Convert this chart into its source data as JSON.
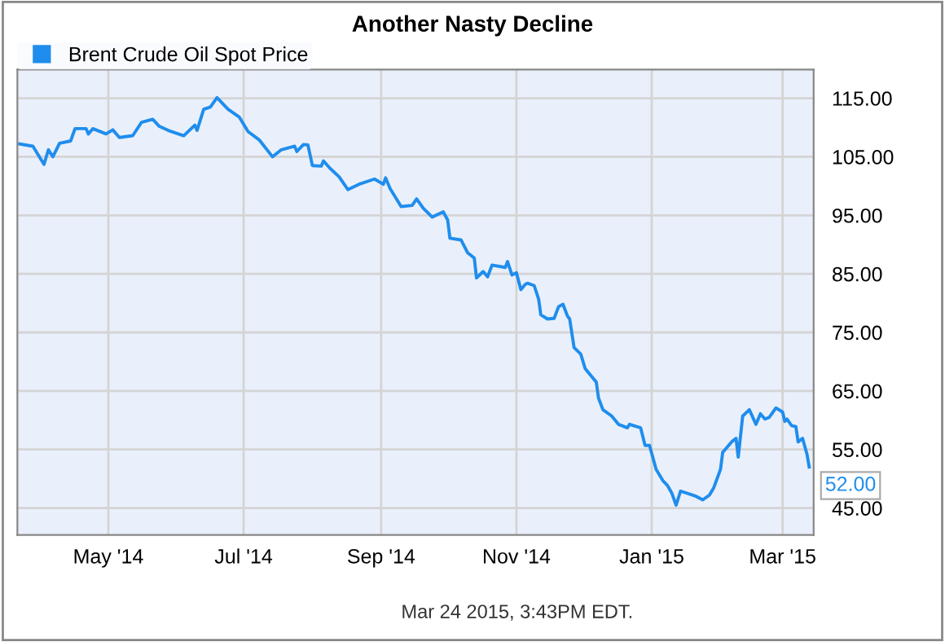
{
  "chart_data": {
    "type": "line",
    "title": "Another Nasty Decline",
    "x": [
      "2014-03-22",
      "2014-03-28",
      "2014-04-02",
      "2014-04-04",
      "2014-04-06",
      "2014-04-09",
      "2014-04-14",
      "2014-04-16",
      "2014-04-21",
      "2014-04-22",
      "2014-04-24",
      "2014-04-30",
      "2014-05-03",
      "2014-05-06",
      "2014-05-12",
      "2014-05-16",
      "2014-05-21",
      "2014-05-24",
      "2014-05-28",
      "2014-06-04",
      "2014-06-09",
      "2014-06-10",
      "2014-06-13",
      "2014-06-16",
      "2014-06-19",
      "2014-06-24",
      "2014-06-29",
      "2014-07-03",
      "2014-07-08",
      "2014-07-14",
      "2014-07-18",
      "2014-07-24",
      "2014-07-25",
      "2014-07-28",
      "2014-07-30",
      "2014-08-01",
      "2014-08-05",
      "2014-08-06",
      "2014-08-09",
      "2014-08-13",
      "2014-08-17",
      "2014-08-22",
      "2014-08-29",
      "2014-09-02",
      "2014-09-03",
      "2014-09-05",
      "2014-09-10",
      "2014-09-15",
      "2014-09-17",
      "2014-09-20",
      "2014-09-24",
      "2014-09-29",
      "2014-10-01",
      "2014-10-02",
      "2014-10-07",
      "2014-10-10",
      "2014-10-13",
      "2014-10-14",
      "2014-10-17",
      "2014-10-19",
      "2014-10-21",
      "2014-10-27",
      "2014-10-28",
      "2014-10-30",
      "2014-11-01",
      "2014-11-03",
      "2014-11-05",
      "2014-11-06",
      "2014-11-09",
      "2014-11-11",
      "2014-11-12",
      "2014-11-15",
      "2014-11-18",
      "2014-11-20",
      "2014-11-22",
      "2014-11-24",
      "2014-11-25",
      "2014-11-27",
      "2014-11-30",
      "2014-12-02",
      "2014-12-07",
      "2014-12-08",
      "2014-12-10",
      "2014-12-14",
      "2014-12-17",
      "2014-12-21",
      "2014-12-22",
      "2014-12-27",
      "2014-12-29",
      "2014-12-31",
      "2015-01-03",
      "2015-01-06",
      "2015-01-08",
      "2015-01-10",
      "2015-01-12",
      "2015-01-14",
      "2015-01-21",
      "2015-01-24",
      "2015-01-27",
      "2015-01-29",
      "2015-02-01",
      "2015-02-02",
      "2015-02-06",
      "2015-02-08",
      "2015-02-09",
      "2015-02-11",
      "2015-02-14",
      "2015-02-17",
      "2015-02-19",
      "2015-02-21",
      "2015-02-23",
      "2015-02-26",
      "2015-03-01",
      "2015-03-02",
      "2015-03-03",
      "2015-03-05",
      "2015-03-07",
      "2015-03-08",
      "2015-03-10",
      "2015-03-12",
      "2015-03-13"
    ],
    "series": [
      {
        "name": "Brent Crude Oil Spot Price",
        "color": "#1f8ded",
        "values": [
          107.2,
          106.8,
          103.7,
          106.2,
          105,
          107.3,
          107.7,
          109.8,
          109.8,
          108.9,
          109.8,
          108.9,
          109.6,
          108.3,
          108.6,
          110.9,
          111.4,
          110.2,
          109.5,
          108.6,
          110.4,
          109.5,
          113.1,
          113.5,
          115.1,
          113.1,
          111.8,
          109.3,
          107.9,
          105,
          106.2,
          106.8,
          105.9,
          107.1,
          107,
          103.5,
          103.4,
          104.3,
          103,
          101.6,
          99.4,
          100.3,
          101.2,
          100.3,
          101.4,
          99.6,
          96.5,
          96.7,
          97.8,
          96.2,
          94.7,
          95.6,
          94.2,
          91.1,
          90.8,
          88.6,
          87.7,
          84.3,
          85.4,
          84.5,
          86.5,
          86.1,
          87.1,
          84.8,
          85.2,
          82.3,
          83.2,
          83.4,
          83,
          80.7,
          78,
          77.3,
          77.4,
          79.4,
          79.8,
          77.8,
          77.3,
          72.4,
          71.3,
          68.8,
          66.5,
          63.8,
          61.8,
          60.7,
          59.3,
          58.7,
          59.3,
          58.7,
          55.7,
          55.7,
          51.6,
          49.7,
          48.9,
          47.6,
          45.5,
          47.9,
          47,
          46.4,
          47.2,
          48.5,
          51.6,
          54.5,
          56.3,
          56.9,
          53.7,
          60.7,
          61.8,
          59.3,
          61.1,
          60.2,
          60.5,
          62.1,
          61.4,
          59.8,
          60.2,
          59.1,
          58.9,
          56.3,
          56.9,
          54.2,
          52
        ]
      }
    ],
    "xlim": [
      "2014-03-21",
      "2015-03-15"
    ],
    "xticks": [
      {
        "value": "2014-05-01",
        "label": "May '14"
      },
      {
        "value": "2014-07-01",
        "label": "Jul '14"
      },
      {
        "value": "2014-09-01",
        "label": "Sep '14"
      },
      {
        "value": "2014-11-01",
        "label": "Nov '14"
      },
      {
        "value": "2015-01-01",
        "label": "Jan '15"
      },
      {
        "value": "2015-03-01",
        "label": "Mar '15"
      }
    ],
    "ylim": [
      40.4,
      119.9
    ],
    "yticks": [
      {
        "value": 45,
        "label": "45.00"
      },
      {
        "value": 55,
        "label": "55.00"
      },
      {
        "value": 65,
        "label": "65.00"
      },
      {
        "value": 75,
        "label": "75.00"
      },
      {
        "value": 85,
        "label": "85.00"
      },
      {
        "value": 95,
        "label": "95.00"
      },
      {
        "value": 105,
        "label": "105.00"
      },
      {
        "value": 115,
        "label": "115.00"
      }
    ],
    "grid": true,
    "legend": "top left",
    "annotations": [
      {
        "text": "52.00",
        "x": "2015-03-13",
        "y": 52
      },
      "Mar 24 2015, 3:43PM EDT."
    ]
  }
}
